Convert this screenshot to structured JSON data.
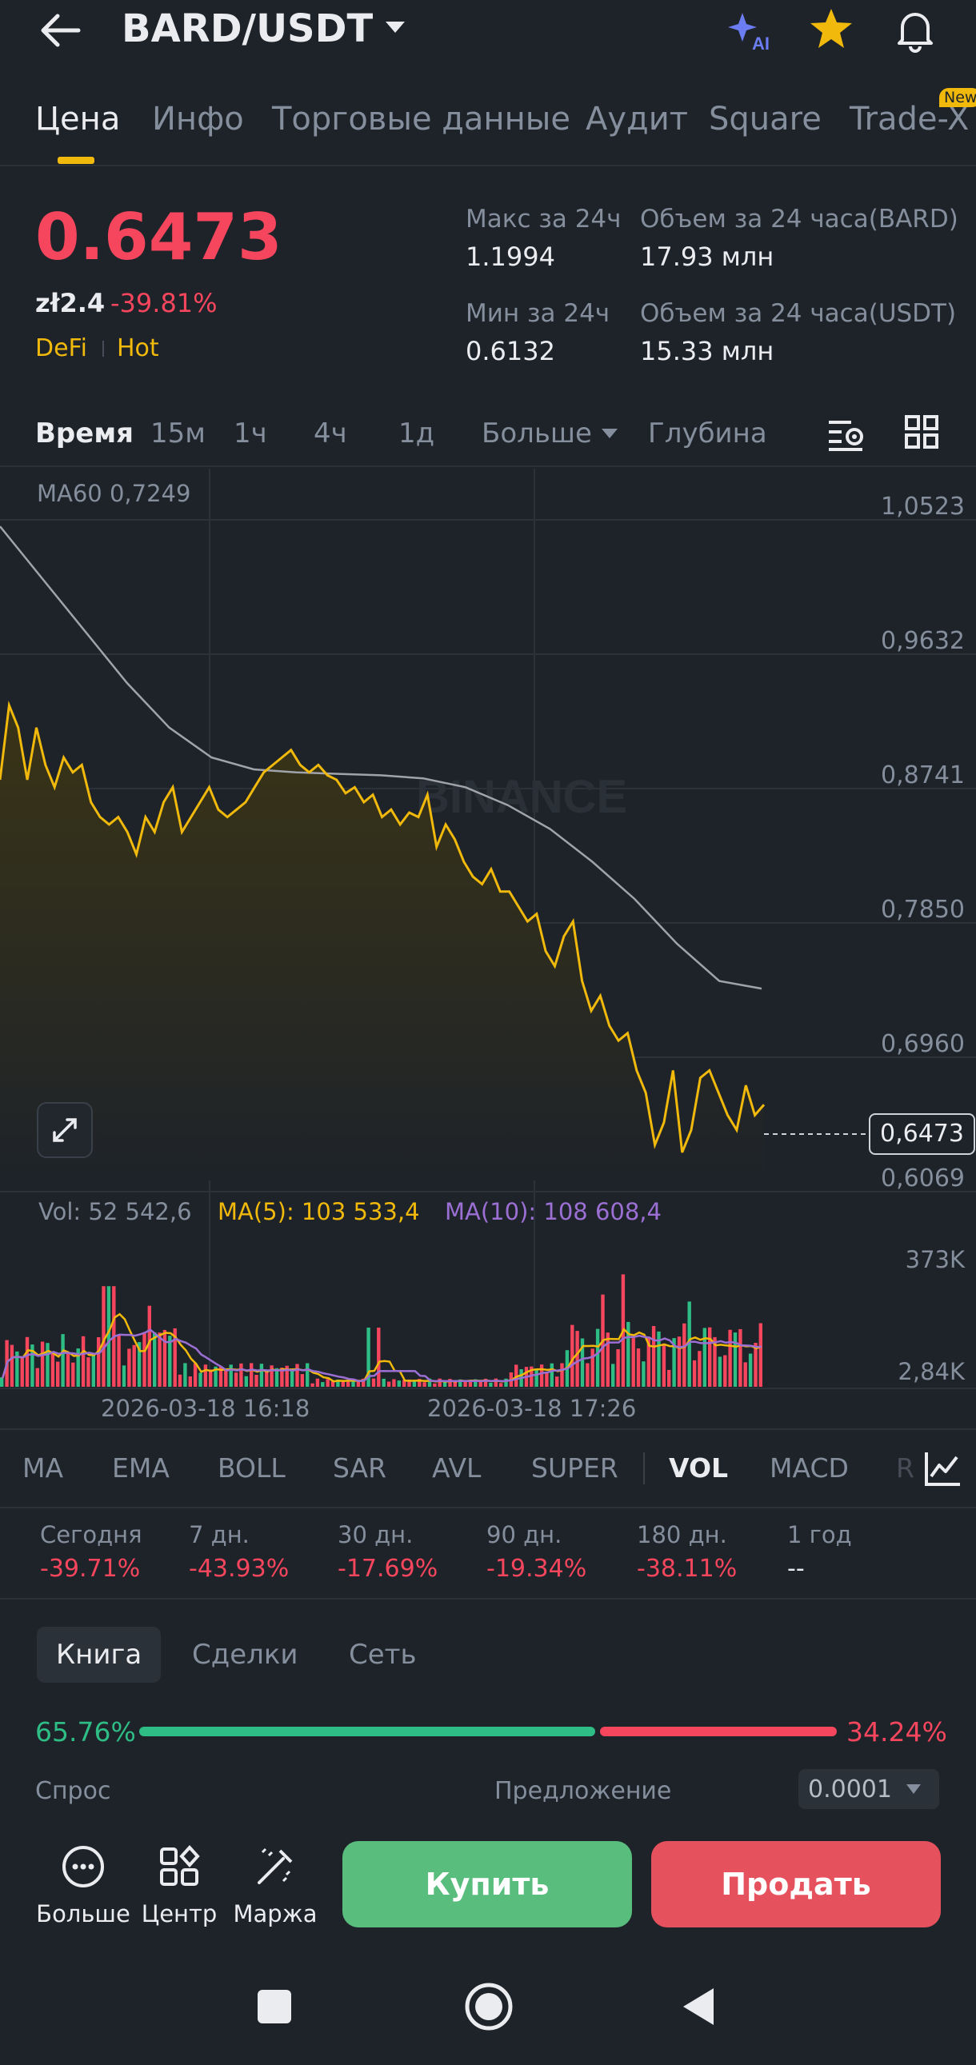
{
  "header": {
    "pair": "BARD/USDT"
  },
  "tabs": [
    {
      "label": "Цена",
      "active": true
    },
    {
      "label": "Инфо"
    },
    {
      "label": "Торговые данные"
    },
    {
      "label": "Аудит"
    },
    {
      "label": "Square"
    },
    {
      "label": "Trade-X",
      "badge": "New"
    }
  ],
  "price": {
    "last": "0.6473",
    "fiat": "zł2.4",
    "change": "-39.81%",
    "tags": [
      "DeFi",
      "Hot"
    ],
    "high_label": "Макс за 24ч",
    "high": "1.1994",
    "low_label": "Мин за 24ч",
    "low": "0.6132",
    "vol_base_label": "Объем за 24 часа(BARD)",
    "vol_base": "17.93 млн",
    "vol_quote_label": "Объем за 24 часа(USDT)",
    "vol_quote": "15.33 млн"
  },
  "intervals": [
    "Время",
    "15м",
    "1ч",
    "4ч",
    "1д",
    "Больше",
    "Глубина"
  ],
  "chart": {
    "ma60_label": "MA60 0,7249",
    "y_ticks": [
      "1,0523",
      "0,9632",
      "0,8741",
      "0,7850",
      "0,6960",
      "0,6069"
    ],
    "current_price_tag": "0,6473",
    "watermark": "BINANCE",
    "vol_label": "Vol: 52 542,6",
    "ma5_label": "MA(5): 103 533,4",
    "ma10_label": "MA(10): 108 608,4",
    "vol_ticks": [
      "373K",
      "2,84K"
    ],
    "x_ticks": [
      "2026-03-18 16:18",
      "2026-03-18 17:26"
    ]
  },
  "chart_data": {
    "type": "line",
    "series": [
      {
        "name": "Цена",
        "values": [
          0.865,
          0.915,
          0.9,
          0.865,
          0.9,
          0.875,
          0.86,
          0.88,
          0.87,
          0.875,
          0.85,
          0.84,
          0.835,
          0.84,
          0.83,
          0.815,
          0.84,
          0.83,
          0.85,
          0.86,
          0.83,
          0.84,
          0.85,
          0.86,
          0.845,
          0.84,
          0.845,
          0.85,
          0.86,
          0.87,
          0.875,
          0.88,
          0.885,
          0.875,
          0.87,
          0.875,
          0.868,
          0.865,
          0.856,
          0.86,
          0.85,
          0.855,
          0.84,
          0.845,
          0.835,
          0.843,
          0.84,
          0.855,
          0.82,
          0.835,
          0.825,
          0.81,
          0.8,
          0.795,
          0.805,
          0.79,
          0.79,
          0.78,
          0.77,
          0.775,
          0.75,
          0.74,
          0.76,
          0.77,
          0.73,
          0.71,
          0.72,
          0.7,
          0.69,
          0.695,
          0.67,
          0.655,
          0.62,
          0.635,
          0.67,
          0.615,
          0.63,
          0.665,
          0.67,
          0.655,
          0.64,
          0.63,
          0.66,
          0.64,
          0.647
        ]
      },
      {
        "name": "MA60",
        "values": [
          1.035,
          1.0,
          0.965,
          0.93,
          0.9,
          0.88,
          0.872,
          0.87,
          0.869,
          0.868,
          0.866,
          0.86,
          0.848,
          0.832,
          0.81,
          0.785,
          0.755,
          0.73,
          0.7249
        ]
      }
    ],
    "volume": {
      "ma5": 103533.4,
      "ma10": 108608.4,
      "last": 52542.6,
      "y_range": [
        "2,84K",
        "373K"
      ]
    }
  },
  "indicators": [
    "MA",
    "EMA",
    "BOLL",
    "SAR",
    "AVL",
    "SUPER",
    "VOL",
    "MACD",
    "R"
  ],
  "performance": [
    {
      "label": "Сегодня",
      "value": "-39.71%"
    },
    {
      "label": "7 дн.",
      "value": "-43.93%"
    },
    {
      "label": "30 дн.",
      "value": "-17.69%"
    },
    {
      "label": "90 дн.",
      "value": "-19.34%"
    },
    {
      "label": "180 дн.",
      "value": "-38.11%"
    },
    {
      "label": "1 год",
      "value": "--"
    }
  ],
  "book": {
    "tabs": [
      "Книга",
      "Сделки",
      "Сеть"
    ],
    "bid_pct": "65.76%",
    "ask_pct": "34.24%",
    "bid_ratio": 0.6576,
    "bids_label": "Спрос",
    "asks_label": "Предложение",
    "precision": "0.0001"
  },
  "bottom": {
    "more": "Больше",
    "center": "Центр",
    "margin": "Маржа",
    "buy": "Купить",
    "sell": "Продать"
  },
  "colors": {
    "up": "#2ebd85",
    "down": "#f6465d",
    "accent": "#f0b90b",
    "ma10": "#9b6fd4",
    "ma60": "#a0a4aa"
  }
}
